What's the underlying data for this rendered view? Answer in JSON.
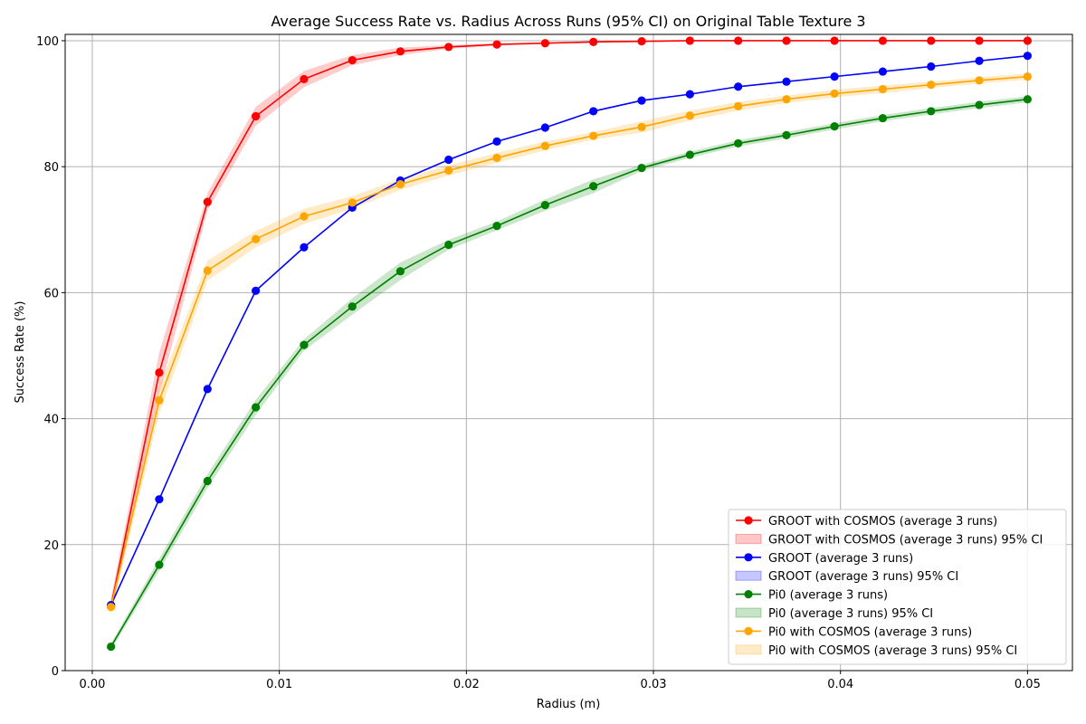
{
  "chart_data": {
    "type": "line",
    "title": "Average Success Rate vs. Radius Across Runs (95% CI) on Original Table Texture 3",
    "xlabel": "Radius (m)",
    "ylabel": "Success Rate (%)",
    "xlim": [
      -0.00145,
      0.0524
    ],
    "ylim": [
      0,
      101
    ],
    "xticks": [
      0.0,
      0.01,
      0.02,
      0.03,
      0.04,
      0.05
    ],
    "xtick_labels": [
      "0.00",
      "0.01",
      "0.02",
      "0.03",
      "0.04",
      "0.05"
    ],
    "yticks": [
      0,
      20,
      40,
      60,
      80,
      100
    ],
    "ytick_labels": [
      "0",
      "20",
      "40",
      "60",
      "80",
      "100"
    ],
    "grid": true,
    "legend_position": "lower-right",
    "x": [
      0.001,
      0.00358,
      0.00616,
      0.00874,
      0.01132,
      0.0139,
      0.01647,
      0.01905,
      0.02163,
      0.02421,
      0.02679,
      0.02937,
      0.03195,
      0.03453,
      0.03711,
      0.03968,
      0.04226,
      0.04484,
      0.04742,
      0.05
    ],
    "series": [
      {
        "name": "GROOT with COSMOS (average 3 runs)",
        "ci_name": "GROOT with COSMOS (average 3 runs) 95% CI",
        "color": "#ff0000",
        "values": [
          10.2,
          47.3,
          74.4,
          88.0,
          93.9,
          96.9,
          98.3,
          99.0,
          99.4,
          99.6,
          99.8,
          99.9,
          100,
          100,
          100,
          100,
          100,
          100,
          100,
          100
        ],
        "ci_low": [
          9.0,
          44.0,
          73.0,
          86.5,
          92.6,
          96.1,
          97.7,
          98.7,
          99.2,
          99.5,
          99.7,
          99.9,
          100,
          100,
          100,
          100,
          100,
          100,
          100,
          100
        ],
        "ci_high": [
          11.5,
          50.5,
          75.8,
          89.5,
          95.2,
          97.7,
          98.9,
          99.3,
          99.6,
          99.8,
          99.9,
          100,
          100,
          100,
          100,
          100,
          100,
          100,
          100,
          100
        ]
      },
      {
        "name": "GROOT (average 3 runs)",
        "ci_name": "GROOT (average 3 runs) 95% CI",
        "color": "#0000ff",
        "values": [
          10.4,
          27.2,
          44.7,
          60.3,
          67.2,
          73.5,
          77.8,
          81.1,
          84.0,
          86.2,
          88.8,
          90.5,
          91.5,
          92.7,
          93.5,
          94.3,
          95.1,
          95.9,
          96.8,
          97.6
        ],
        "ci_low": [
          10.4,
          27.2,
          44.7,
          60.3,
          67.2,
          73.5,
          77.8,
          81.1,
          84.0,
          86.2,
          88.8,
          90.5,
          91.5,
          92.7,
          93.5,
          94.3,
          95.1,
          95.9,
          96.8,
          97.6
        ],
        "ci_high": [
          10.4,
          27.2,
          44.7,
          60.3,
          67.2,
          73.5,
          77.8,
          81.1,
          84.0,
          86.2,
          88.8,
          90.5,
          91.5,
          92.7,
          93.5,
          94.3,
          95.1,
          95.9,
          96.8,
          97.6
        ]
      },
      {
        "name": "Pi0 (average 3 runs)",
        "ci_name": "Pi0 (average 3 runs) 95% CI",
        "color": "#008000",
        "values": [
          3.8,
          16.8,
          30.1,
          41.8,
          51.7,
          57.8,
          63.4,
          67.6,
          70.6,
          73.9,
          76.9,
          79.8,
          81.9,
          83.7,
          85.0,
          86.4,
          87.7,
          88.8,
          89.8,
          90.7
        ],
        "ci_low": [
          3.3,
          15.8,
          29.0,
          40.6,
          50.8,
          56.5,
          62.0,
          66.8,
          69.9,
          73.0,
          75.8,
          79.3,
          81.4,
          83.2,
          84.5,
          85.9,
          87.2,
          88.3,
          89.3,
          90.2
        ],
        "ci_high": [
          4.3,
          17.8,
          31.2,
          43.0,
          52.6,
          59.1,
          64.8,
          68.4,
          71.3,
          74.8,
          78.0,
          80.3,
          82.4,
          84.2,
          85.5,
          86.9,
          88.2,
          89.3,
          90.3,
          91.2
        ]
      },
      {
        "name": "Pi0 with COSMOS (average 3 runs)",
        "ci_name": "Pi0 with COSMOS (average 3 runs) 95% CI",
        "color": "#ffa500",
        "values": [
          10.1,
          42.9,
          63.5,
          68.5,
          72.1,
          74.3,
          77.2,
          79.4,
          81.4,
          83.3,
          84.9,
          86.3,
          88.1,
          89.6,
          90.7,
          91.6,
          92.3,
          93.0,
          93.7,
          94.3
        ],
        "ci_low": [
          9.0,
          40.8,
          61.9,
          67.2,
          70.9,
          73.3,
          76.3,
          78.6,
          80.6,
          82.6,
          84.3,
          85.4,
          87.3,
          88.9,
          90.1,
          91.0,
          91.7,
          92.5,
          93.2,
          93.8
        ],
        "ci_high": [
          11.2,
          45.0,
          65.1,
          69.8,
          73.3,
          75.3,
          78.1,
          80.2,
          82.2,
          84.0,
          85.5,
          87.2,
          88.9,
          90.3,
          91.3,
          92.2,
          92.9,
          93.5,
          94.2,
          94.8
        ]
      }
    ]
  }
}
